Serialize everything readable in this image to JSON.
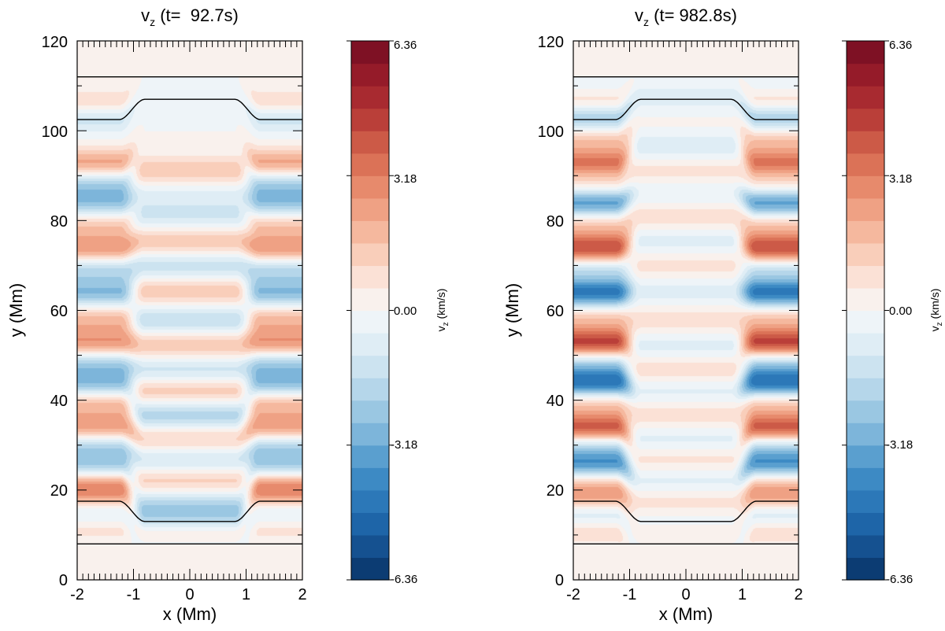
{
  "chart_data": [
    {
      "type": "heatmap",
      "title": "v_z (t=  92.7s)",
      "title_parts": {
        "main": "v",
        "sub": "z",
        "rest": " (t=  92.7s)"
      },
      "xlabel": "x (Mm)",
      "ylabel": "y (Mm)",
      "xlim": [
        -2,
        2
      ],
      "ylim": [
        0,
        120
      ],
      "xticks": [
        "-2",
        "-1",
        "0",
        "1",
        "2"
      ],
      "yticks": [
        "0",
        "20",
        "40",
        "60",
        "80",
        "100",
        "120"
      ],
      "colorbar": {
        "label": "v_z (km/s)",
        "label_parts": {
          "main": "v",
          "sub": "z",
          "rest": " (km/s)"
        },
        "ticks": [
          "6.36",
          "3.18",
          "0.00",
          "-3.18",
          "-6.36"
        ],
        "range": [
          -6.36,
          6.36
        ],
        "levels": 24,
        "colormap": "blue-white-red (RdBu reversed)"
      },
      "horizontal_lines_y": [
        8,
        112
      ],
      "contour_top": {
        "outer_y": 102.5,
        "inner_y": 107,
        "transition_x": [
          0.8,
          1.25
        ]
      },
      "contour_bottom": {
        "outer_y": 17.5,
        "inner_y": 13,
        "transition_x": [
          0.8,
          1.25
        ]
      },
      "band_peak_y": [
        106,
        103,
        93,
        88,
        84,
        79,
        74,
        69,
        64,
        58,
        53,
        48,
        44,
        39,
        34,
        30,
        26,
        21,
        18,
        15,
        12
      ],
      "band_peak_values_edge": [
        1.2,
        -1.5,
        2.3,
        -2.0,
        -2.3,
        1.5,
        2.6,
        -1.8,
        -2.6,
        1.8,
        2.6,
        -2.0,
        -2.5,
        1.8,
        2.5,
        -1.8,
        -2.2,
        2.5,
        1.5,
        -1.5,
        1.0
      ],
      "band_peak_values_center": [
        0.0,
        -0.2,
        0.0,
        1.6,
        -0.8,
        -1.2,
        1.6,
        -1.5,
        1.5,
        -1.6,
        1.6,
        -1.5,
        1.6,
        -2.0,
        1.5,
        -1.6,
        1.5,
        -1.5,
        -1.8,
        1.5,
        -1.2
      ]
    },
    {
      "type": "heatmap",
      "title": "v_z (t= 982.8s)",
      "title_parts": {
        "main": "v",
        "sub": "z",
        "rest": " (t= 982.8s)"
      },
      "xlabel": "x (Mm)",
      "ylabel": "y (Mm)",
      "xlim": [
        -2,
        2
      ],
      "ylim": [
        0,
        120
      ],
      "xticks": [
        "-2",
        "-1",
        "0",
        "1",
        "2"
      ],
      "yticks": [
        "0",
        "20",
        "40",
        "60",
        "80",
        "100",
        "120"
      ],
      "colorbar": {
        "label": "v_z (km/s)",
        "label_parts": {
          "main": "v",
          "sub": "z",
          "rest": " (km/s)"
        },
        "ticks": [
          "6.36",
          "3.18",
          "0.00",
          "-3.18",
          "-6.36"
        ],
        "range": [
          -6.36,
          6.36
        ],
        "levels": 24,
        "colormap": "blue-white-red (RdBu reversed)"
      },
      "horizontal_lines_y": [
        8,
        112
      ],
      "contour_top": {
        "outer_y": 102.5,
        "inner_y": 107,
        "transition_x": [
          0.8,
          1.25
        ]
      },
      "contour_bottom": {
        "outer_y": 17.5,
        "inner_y": 13,
        "transition_x": [
          0.8,
          1.25
        ]
      },
      "band_peak_y": [
        109,
        107,
        103,
        98,
        93,
        88,
        84,
        79,
        74,
        69,
        64,
        58,
        53,
        48,
        44,
        39,
        34,
        30,
        26,
        21,
        18,
        15,
        11
      ],
      "band_peak_values_edge": [
        -0.8,
        1.5,
        -2.3,
        1.5,
        3.2,
        0.8,
        -3.5,
        1.5,
        4.2,
        -1.5,
        -4.4,
        1.5,
        4.4,
        -1.8,
        -4.4,
        1.5,
        4.0,
        -1.5,
        -3.5,
        1.5,
        2.0,
        -1.5,
        1.0
      ],
      "band_peak_values_center": [
        -0.3,
        0.2,
        -0.8,
        0.2,
        -0.9,
        0.9,
        -0.7,
        0.9,
        -0.8,
        0.8,
        -0.8,
        0.9,
        -0.8,
        1.0,
        -0.8,
        0.9,
        -0.8,
        0.9,
        -0.8,
        1.0,
        -0.8,
        0.8,
        -0.8
      ]
    }
  ]
}
